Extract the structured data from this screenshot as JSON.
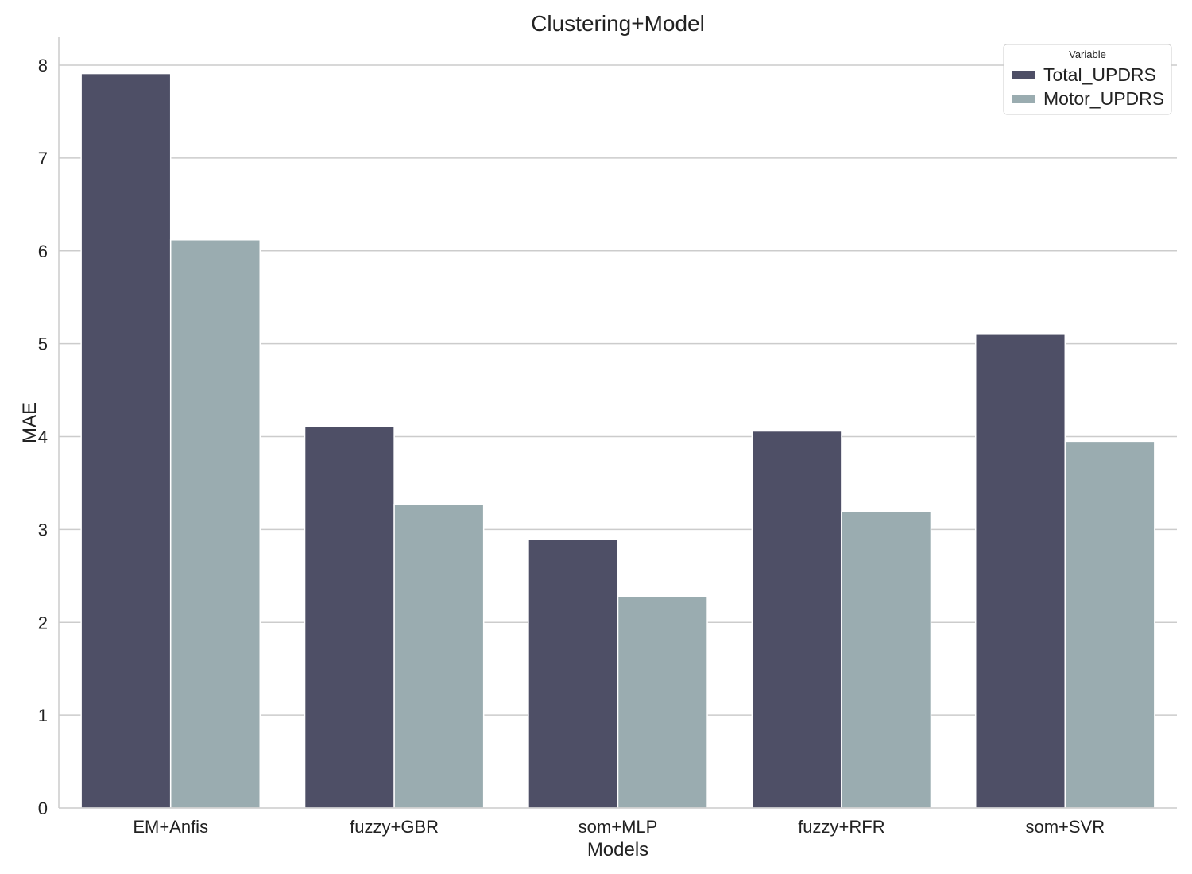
{
  "chart_data": {
    "type": "bar",
    "title": "Clustering+Model",
    "xlabel": "Models",
    "ylabel": "MAE",
    "categories": [
      "EM+Anfis",
      "fuzzy+GBR",
      "som+MLP",
      "fuzzy+RFR",
      "som+SVR"
    ],
    "series": [
      {
        "name": "Total_UPDRS",
        "values": [
          7.91,
          4.11,
          2.89,
          4.06,
          5.11
        ],
        "color": "#4e4f66"
      },
      {
        "name": "Motor_UPDRS",
        "values": [
          6.12,
          3.27,
          2.28,
          3.19,
          3.95
        ],
        "color": "#9aacb0"
      }
    ],
    "ylim": [
      0,
      8.3
    ],
    "yticks": [
      0,
      1,
      2,
      3,
      4,
      5,
      6,
      7,
      8
    ],
    "grid": "horizontal",
    "legend": {
      "title": "Variable",
      "placement": "top-right"
    }
  }
}
